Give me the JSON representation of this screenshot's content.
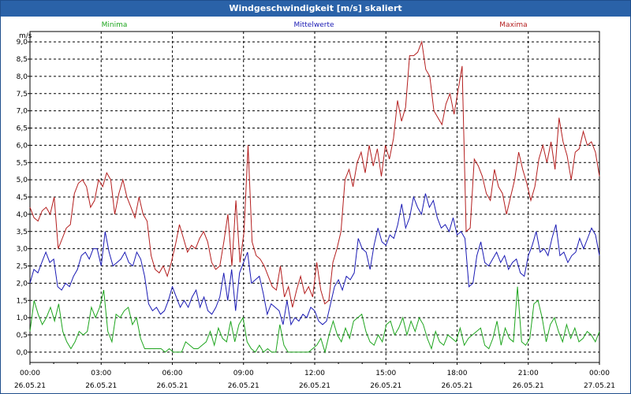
{
  "window": {
    "title": "Windgeschwindigkeit [m/s] skaliert"
  },
  "chart_data": {
    "type": "line",
    "title": "Windgeschwindigkeit [m/s] skaliert",
    "ylabel": "m/s",
    "ylim": [
      -0.3,
      9.3
    ],
    "xlim": [
      0,
      24
    ],
    "y_ticks": [
      "0,0",
      "0,5",
      "1,0",
      "1,5",
      "2,0",
      "2,5",
      "3,0",
      "3,5",
      "4,0",
      "4,5",
      "5,0",
      "5,5",
      "6,0",
      "6,5",
      "7,0",
      "7,5",
      "8,0",
      "8,5",
      "9,0"
    ],
    "x_ticks": [
      {
        "time": "00:00",
        "date": "26.05.21"
      },
      {
        "time": "03:00",
        "date": "26.05.21"
      },
      {
        "time": "06:00",
        "date": "26.05.21"
      },
      {
        "time": "09:00",
        "date": "26.05.21"
      },
      {
        "time": "12:00",
        "date": "26.05.21"
      },
      {
        "time": "15:00",
        "date": "26.05.21"
      },
      {
        "time": "18:00",
        "date": "26.05.21"
      },
      {
        "time": "21:00",
        "date": "26.05.21"
      },
      {
        "time": "00:00",
        "date": "27.05.21"
      }
    ],
    "grid": true,
    "series": [
      {
        "name": "Minima",
        "color": "#1ea51e",
        "position": "left",
        "values": [
          0.6,
          1.5,
          1.1,
          0.8,
          1.0,
          1.3,
          0.9,
          1.4,
          0.6,
          0.3,
          0.1,
          0.3,
          0.6,
          0.5,
          0.6,
          1.3,
          1.0,
          1.3,
          1.8,
          0.6,
          0.3,
          1.1,
          1.0,
          1.2,
          1.3,
          0.8,
          1.0,
          0.4,
          0.1,
          0.1,
          0.1,
          0.1,
          0.1,
          0.0,
          0.1,
          0.0,
          0.0,
          0.0,
          0.3,
          0.2,
          0.1,
          0.1,
          0.2,
          0.3,
          0.6,
          0.2,
          0.7,
          0.4,
          0.3,
          0.9,
          0.3,
          0.8,
          1.0,
          0.3,
          0.1,
          0.0,
          0.2,
          0.0,
          0.1,
          0.0,
          0.0,
          0.8,
          0.2,
          0.0,
          0.0,
          0.0,
          0.0,
          0.0,
          0.0,
          0.1,
          0.2,
          0.4,
          0.0,
          0.5,
          0.9,
          0.5,
          0.3,
          0.7,
          0.4,
          0.9,
          1.0,
          1.1,
          0.6,
          0.3,
          0.2,
          0.5,
          0.3,
          0.8,
          0.9,
          0.5,
          0.7,
          1.0,
          0.5,
          0.9,
          0.6,
          1.0,
          0.8,
          0.4,
          0.1,
          0.6,
          0.3,
          0.2,
          0.5,
          0.4,
          0.3,
          0.7,
          0.2,
          0.4,
          0.5,
          0.6,
          0.7,
          0.2,
          0.1,
          0.4,
          0.9,
          0.2,
          0.7,
          0.4,
          0.3,
          1.9,
          0.3,
          0.2,
          0.4,
          1.4,
          1.5,
          1.0,
          0.3,
          0.8,
          1.0,
          0.6,
          0.3,
          0.8,
          0.4,
          0.7,
          0.3,
          0.4,
          0.6,
          0.5,
          0.3,
          0.6
        ]
      },
      {
        "name": "Mittelwerte",
        "color": "#1a1ab4",
        "position": "center",
        "values": [
          2.0,
          2.4,
          2.3,
          2.6,
          2.9,
          2.6,
          2.7,
          1.9,
          1.8,
          2.0,
          1.9,
          2.2,
          2.4,
          2.8,
          2.9,
          2.7,
          3.0,
          3.0,
          2.5,
          3.5,
          2.9,
          2.5,
          2.6,
          2.7,
          2.9,
          2.6,
          2.5,
          2.9,
          2.7,
          2.2,
          1.4,
          1.2,
          1.3,
          1.1,
          1.2,
          1.5,
          1.9,
          1.6,
          1.3,
          1.5,
          1.3,
          1.6,
          1.8,
          1.3,
          1.6,
          1.2,
          1.1,
          1.3,
          1.6,
          2.3,
          1.5,
          2.4,
          1.2,
          2.3,
          2.6,
          2.9,
          2.0,
          2.1,
          2.2,
          1.7,
          1.1,
          1.4,
          1.3,
          1.2,
          0.8,
          1.5,
          0.8,
          1.0,
          0.9,
          1.1,
          1.0,
          1.3,
          1.2,
          0.9,
          0.8,
          0.9,
          1.4,
          1.9,
          2.1,
          1.8,
          2.2,
          2.1,
          2.3,
          3.3,
          3.0,
          2.9,
          2.4,
          3.1,
          3.6,
          3.2,
          3.1,
          3.4,
          3.3,
          3.7,
          4.3,
          3.6,
          3.9,
          4.5,
          4.2,
          4.0,
          4.6,
          4.2,
          4.4,
          3.9,
          3.6,
          3.7,
          3.5,
          3.9,
          3.4,
          3.5,
          3.3,
          1.9,
          2.0,
          2.8,
          3.2,
          2.6,
          2.5,
          2.7,
          2.9,
          2.6,
          2.8,
          2.4,
          2.6,
          2.7,
          2.3,
          2.2,
          2.8,
          3.1,
          3.5,
          2.9,
          3.0,
          2.8,
          3.3,
          3.7,
          2.8,
          2.9,
          2.6,
          2.8,
          2.9,
          3.3,
          3.0,
          3.3,
          3.6,
          3.4,
          2.8
        ]
      },
      {
        "name": "Maxima",
        "color": "#b41e1e",
        "position": "right",
        "values": [
          4.2,
          3.9,
          3.8,
          4.1,
          4.2,
          4.0,
          4.5,
          3.0,
          3.3,
          3.6,
          3.7,
          4.6,
          4.9,
          5.0,
          4.8,
          4.2,
          4.4,
          5.0,
          4.8,
          5.2,
          5.0,
          4.0,
          4.6,
          5.0,
          4.5,
          4.2,
          3.9,
          4.5,
          4.0,
          3.8,
          2.8,
          2.4,
          2.3,
          2.5,
          2.2,
          2.6,
          3.1,
          3.7,
          3.3,
          2.9,
          3.1,
          3.0,
          3.3,
          3.5,
          3.2,
          2.6,
          2.4,
          2.5,
          3.2,
          4.0,
          2.5,
          4.4,
          2.6,
          3.5,
          6.0,
          3.2,
          2.8,
          2.7,
          2.5,
          2.2,
          1.9,
          1.8,
          2.5,
          1.6,
          1.9,
          1.3,
          1.8,
          2.2,
          1.7,
          1.9,
          1.6,
          2.6,
          1.8,
          1.4,
          1.5,
          2.6,
          3.0,
          3.5,
          5.0,
          5.3,
          4.8,
          5.5,
          5.8,
          5.2,
          6.0,
          5.4,
          5.9,
          5.1,
          6.0,
          5.6,
          6.2,
          7.3,
          6.7,
          7.1,
          8.6,
          8.6,
          8.7,
          9.0,
          8.2,
          8.0,
          7.0,
          6.8,
          6.6,
          7.2,
          7.5,
          6.9,
          7.6,
          8.3,
          3.5,
          3.6,
          5.6,
          5.4,
          5.1,
          4.6,
          4.4,
          5.3,
          4.8,
          4.6,
          4.0,
          4.5,
          5.0,
          5.8,
          5.3,
          4.9,
          4.4,
          4.8,
          5.6,
          6.0,
          5.5,
          6.1,
          5.3,
          6.8,
          6.1,
          5.7,
          5.0,
          5.8,
          5.9,
          6.4,
          6.0,
          6.1,
          5.8,
          5.1
        ]
      }
    ]
  }
}
